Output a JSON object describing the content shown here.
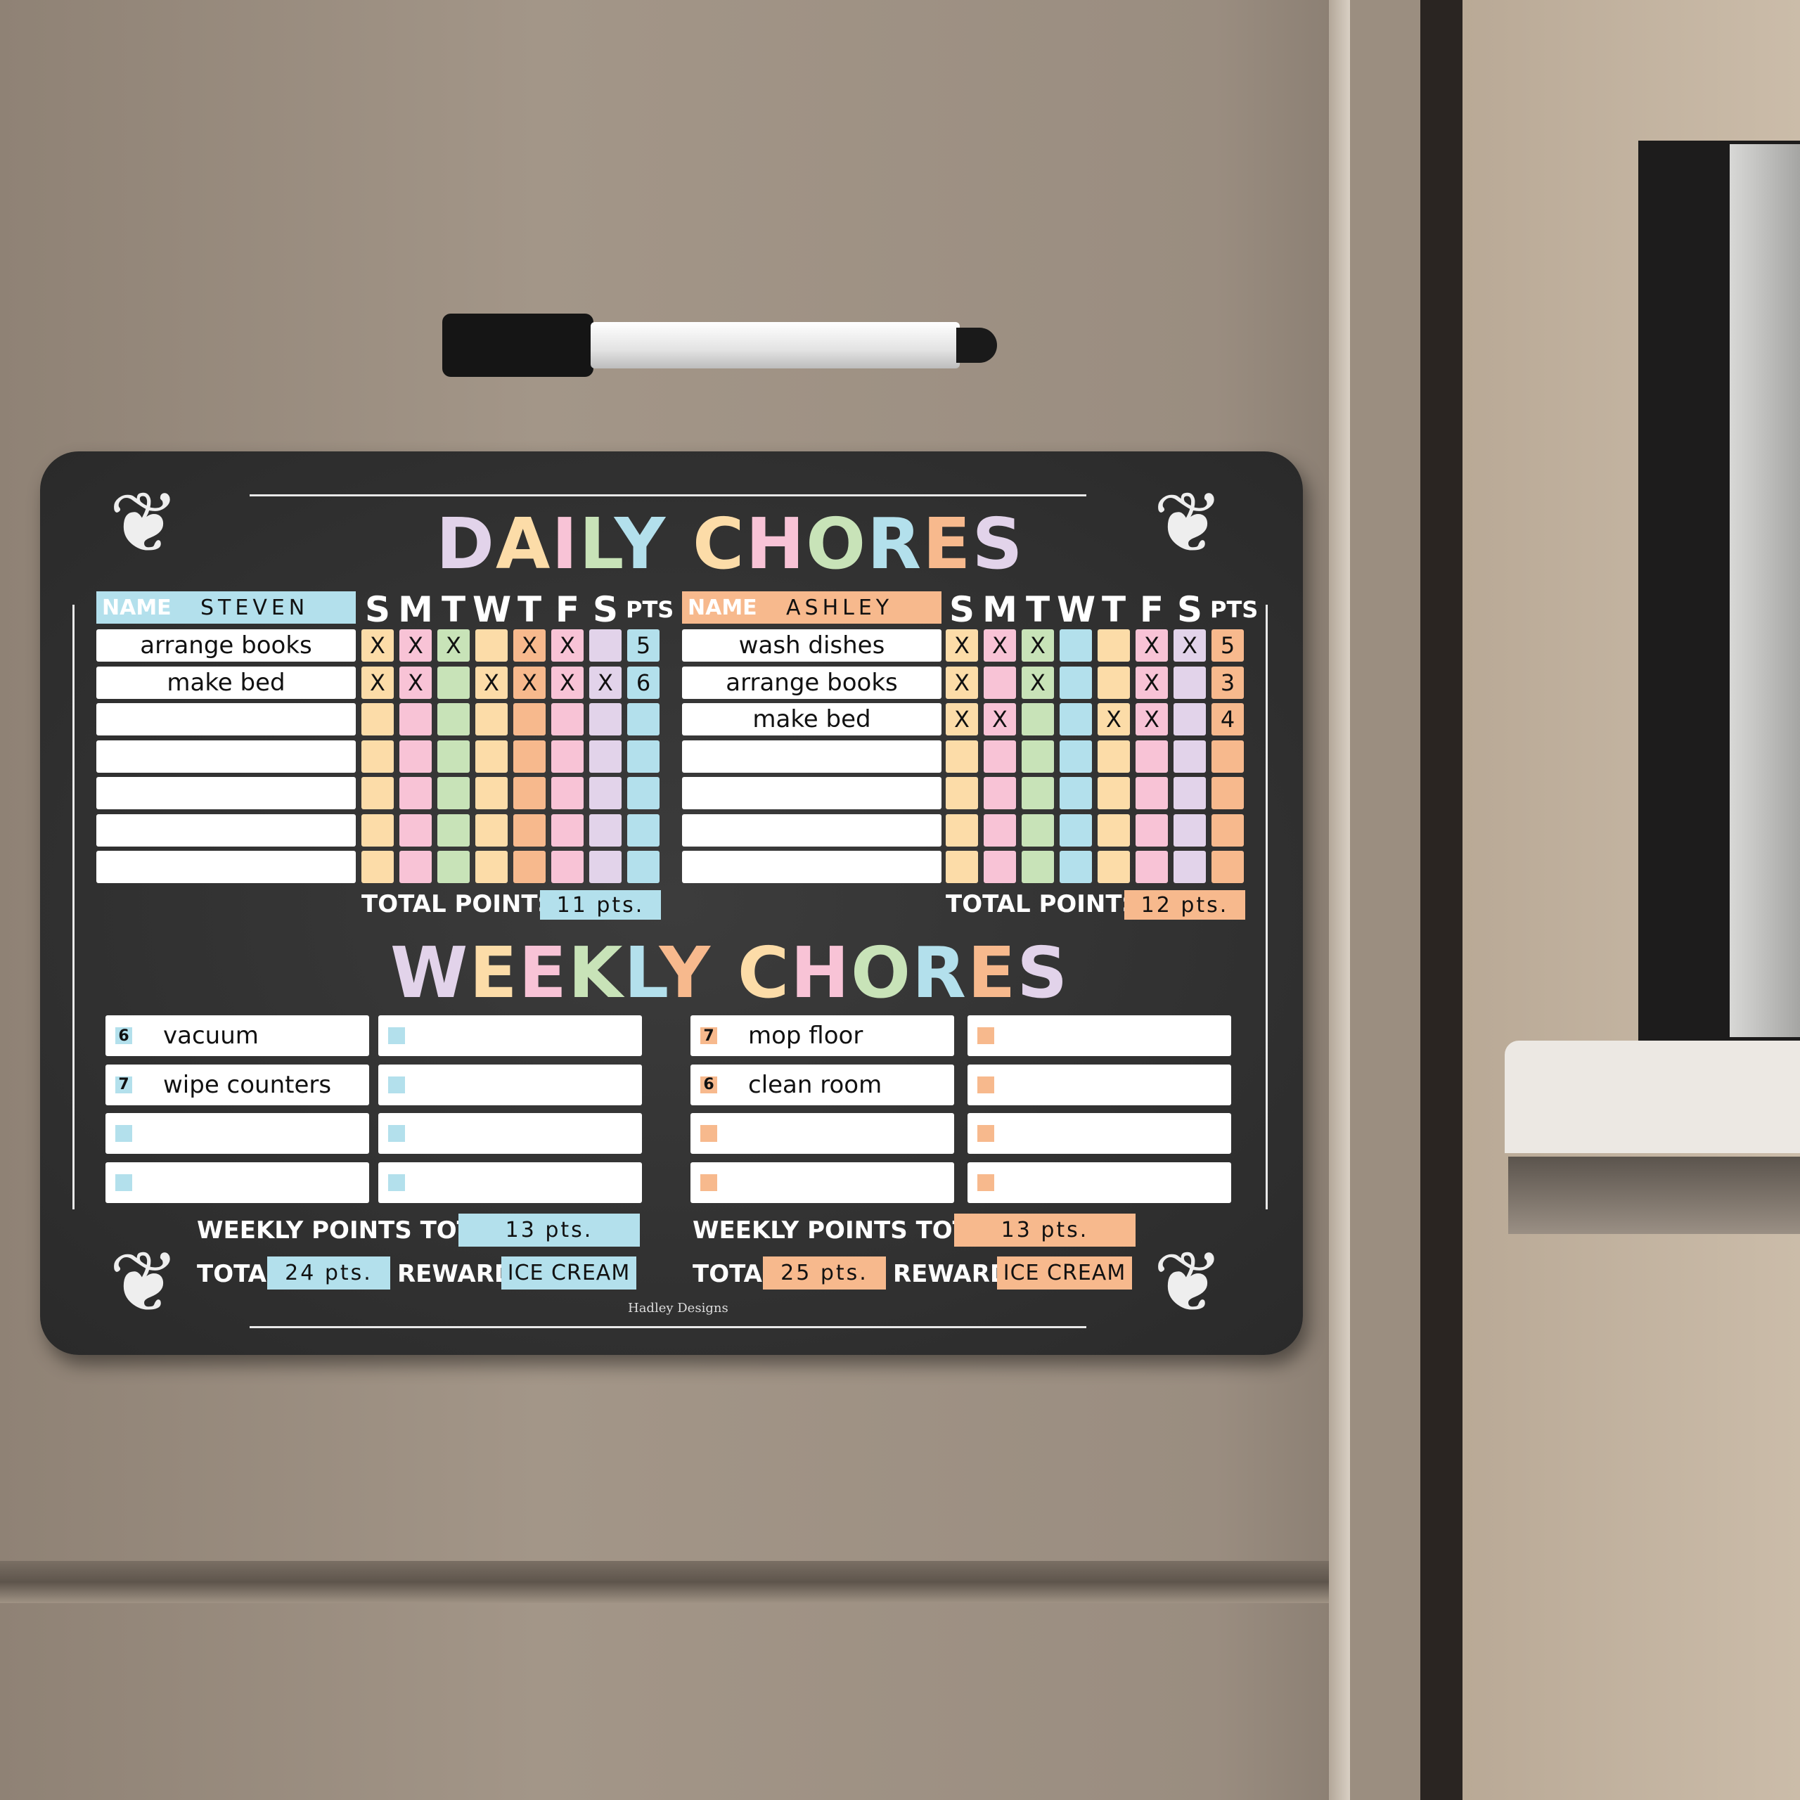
{
  "colors": {
    "blue": "#b3e0ec",
    "orange": "#f7b98d",
    "light_orange": "#fcdca8",
    "pink": "#f8c3d6",
    "green": "#c8e3b8",
    "lavender": "#e2d3ea",
    "board": "#2f2f2f"
  },
  "titles": {
    "daily_1": "DAILY",
    "daily_2": "CHORES",
    "weekly_1": "WEEKLY",
    "weekly_2": "CHORES"
  },
  "days": [
    "S",
    "M",
    "T",
    "W",
    "T",
    "F",
    "S"
  ],
  "pts_header": "PTS",
  "name_label": "NAME",
  "total_points_label": "TOTAL POINTS:",
  "weekly_points_label": "WEEKLY POINTS TOTAL:",
  "total_label": "TOTAL:",
  "reward_label": "REWARD:",
  "brand": "Hadley Designs",
  "kids": [
    {
      "name": "STEVEN",
      "accent": "blue",
      "column_colors": [
        "light_orange",
        "pink",
        "green",
        "light_orange",
        "orange",
        "pink",
        "lavender",
        "blue"
      ],
      "chores": [
        {
          "task": "arrange books",
          "marks": [
            "X",
            "X",
            "X",
            "",
            "X",
            "X",
            ""
          ],
          "pts": "5"
        },
        {
          "task": "make bed",
          "marks": [
            "X",
            "X",
            "",
            "X",
            "X",
            "X",
            "X"
          ],
          "pts": "6"
        },
        {
          "task": "",
          "marks": [
            "",
            "",
            "",
            "",
            "",
            "",
            ""
          ],
          "pts": ""
        },
        {
          "task": "",
          "marks": [
            "",
            "",
            "",
            "",
            "",
            "",
            ""
          ],
          "pts": ""
        },
        {
          "task": "",
          "marks": [
            "",
            "",
            "",
            "",
            "",
            "",
            ""
          ],
          "pts": ""
        },
        {
          "task": "",
          "marks": [
            "",
            "",
            "",
            "",
            "",
            "",
            ""
          ],
          "pts": ""
        },
        {
          "task": "",
          "marks": [
            "",
            "",
            "",
            "",
            "",
            "",
            ""
          ],
          "pts": ""
        }
      ],
      "total_points": "11 pts.",
      "weekly": [
        {
          "pts": "6",
          "task": "vacuum"
        },
        {
          "pts": "7",
          "task": "wipe counters"
        },
        {
          "pts": "",
          "task": ""
        },
        {
          "pts": "",
          "task": ""
        },
        {
          "pts": "",
          "task": ""
        },
        {
          "pts": "",
          "task": ""
        },
        {
          "pts": "",
          "task": ""
        },
        {
          "pts": "",
          "task": ""
        }
      ],
      "weekly_total": "13 pts.",
      "grand_total": "24 pts.",
      "reward": "ICE CREAM"
    },
    {
      "name": "ASHLEY",
      "accent": "orange",
      "column_colors": [
        "light_orange",
        "pink",
        "green",
        "blue",
        "light_orange",
        "pink",
        "lavender",
        "orange"
      ],
      "chores": [
        {
          "task": "wash dishes",
          "marks": [
            "X",
            "X",
            "X",
            "",
            "",
            "X",
            "X"
          ],
          "pts": "5"
        },
        {
          "task": "arrange books",
          "marks": [
            "X",
            "",
            "X",
            "",
            "",
            "X",
            ""
          ],
          "pts": "3"
        },
        {
          "task": "make bed",
          "marks": [
            "X",
            "X",
            "",
            "",
            "X",
            "X",
            ""
          ],
          "pts": "4"
        },
        {
          "task": "",
          "marks": [
            "",
            "",
            "",
            "",
            "",
            "",
            ""
          ],
          "pts": ""
        },
        {
          "task": "",
          "marks": [
            "",
            "",
            "",
            "",
            "",
            "",
            ""
          ],
          "pts": ""
        },
        {
          "task": "",
          "marks": [
            "",
            "",
            "",
            "",
            "",
            "",
            ""
          ],
          "pts": ""
        },
        {
          "task": "",
          "marks": [
            "",
            "",
            "",
            "",
            "",
            "",
            ""
          ],
          "pts": ""
        }
      ],
      "total_points": "12 pts.",
      "weekly": [
        {
          "pts": "7",
          "task": "mop floor"
        },
        {
          "pts": "6",
          "task": "clean room"
        },
        {
          "pts": "",
          "task": ""
        },
        {
          "pts": "",
          "task": ""
        },
        {
          "pts": "",
          "task": ""
        },
        {
          "pts": "",
          "task": ""
        },
        {
          "pts": "",
          "task": ""
        },
        {
          "pts": "",
          "task": ""
        }
      ],
      "weekly_total": "13 pts.",
      "grand_total": "25 pts.",
      "reward": "ICE CREAM"
    }
  ]
}
